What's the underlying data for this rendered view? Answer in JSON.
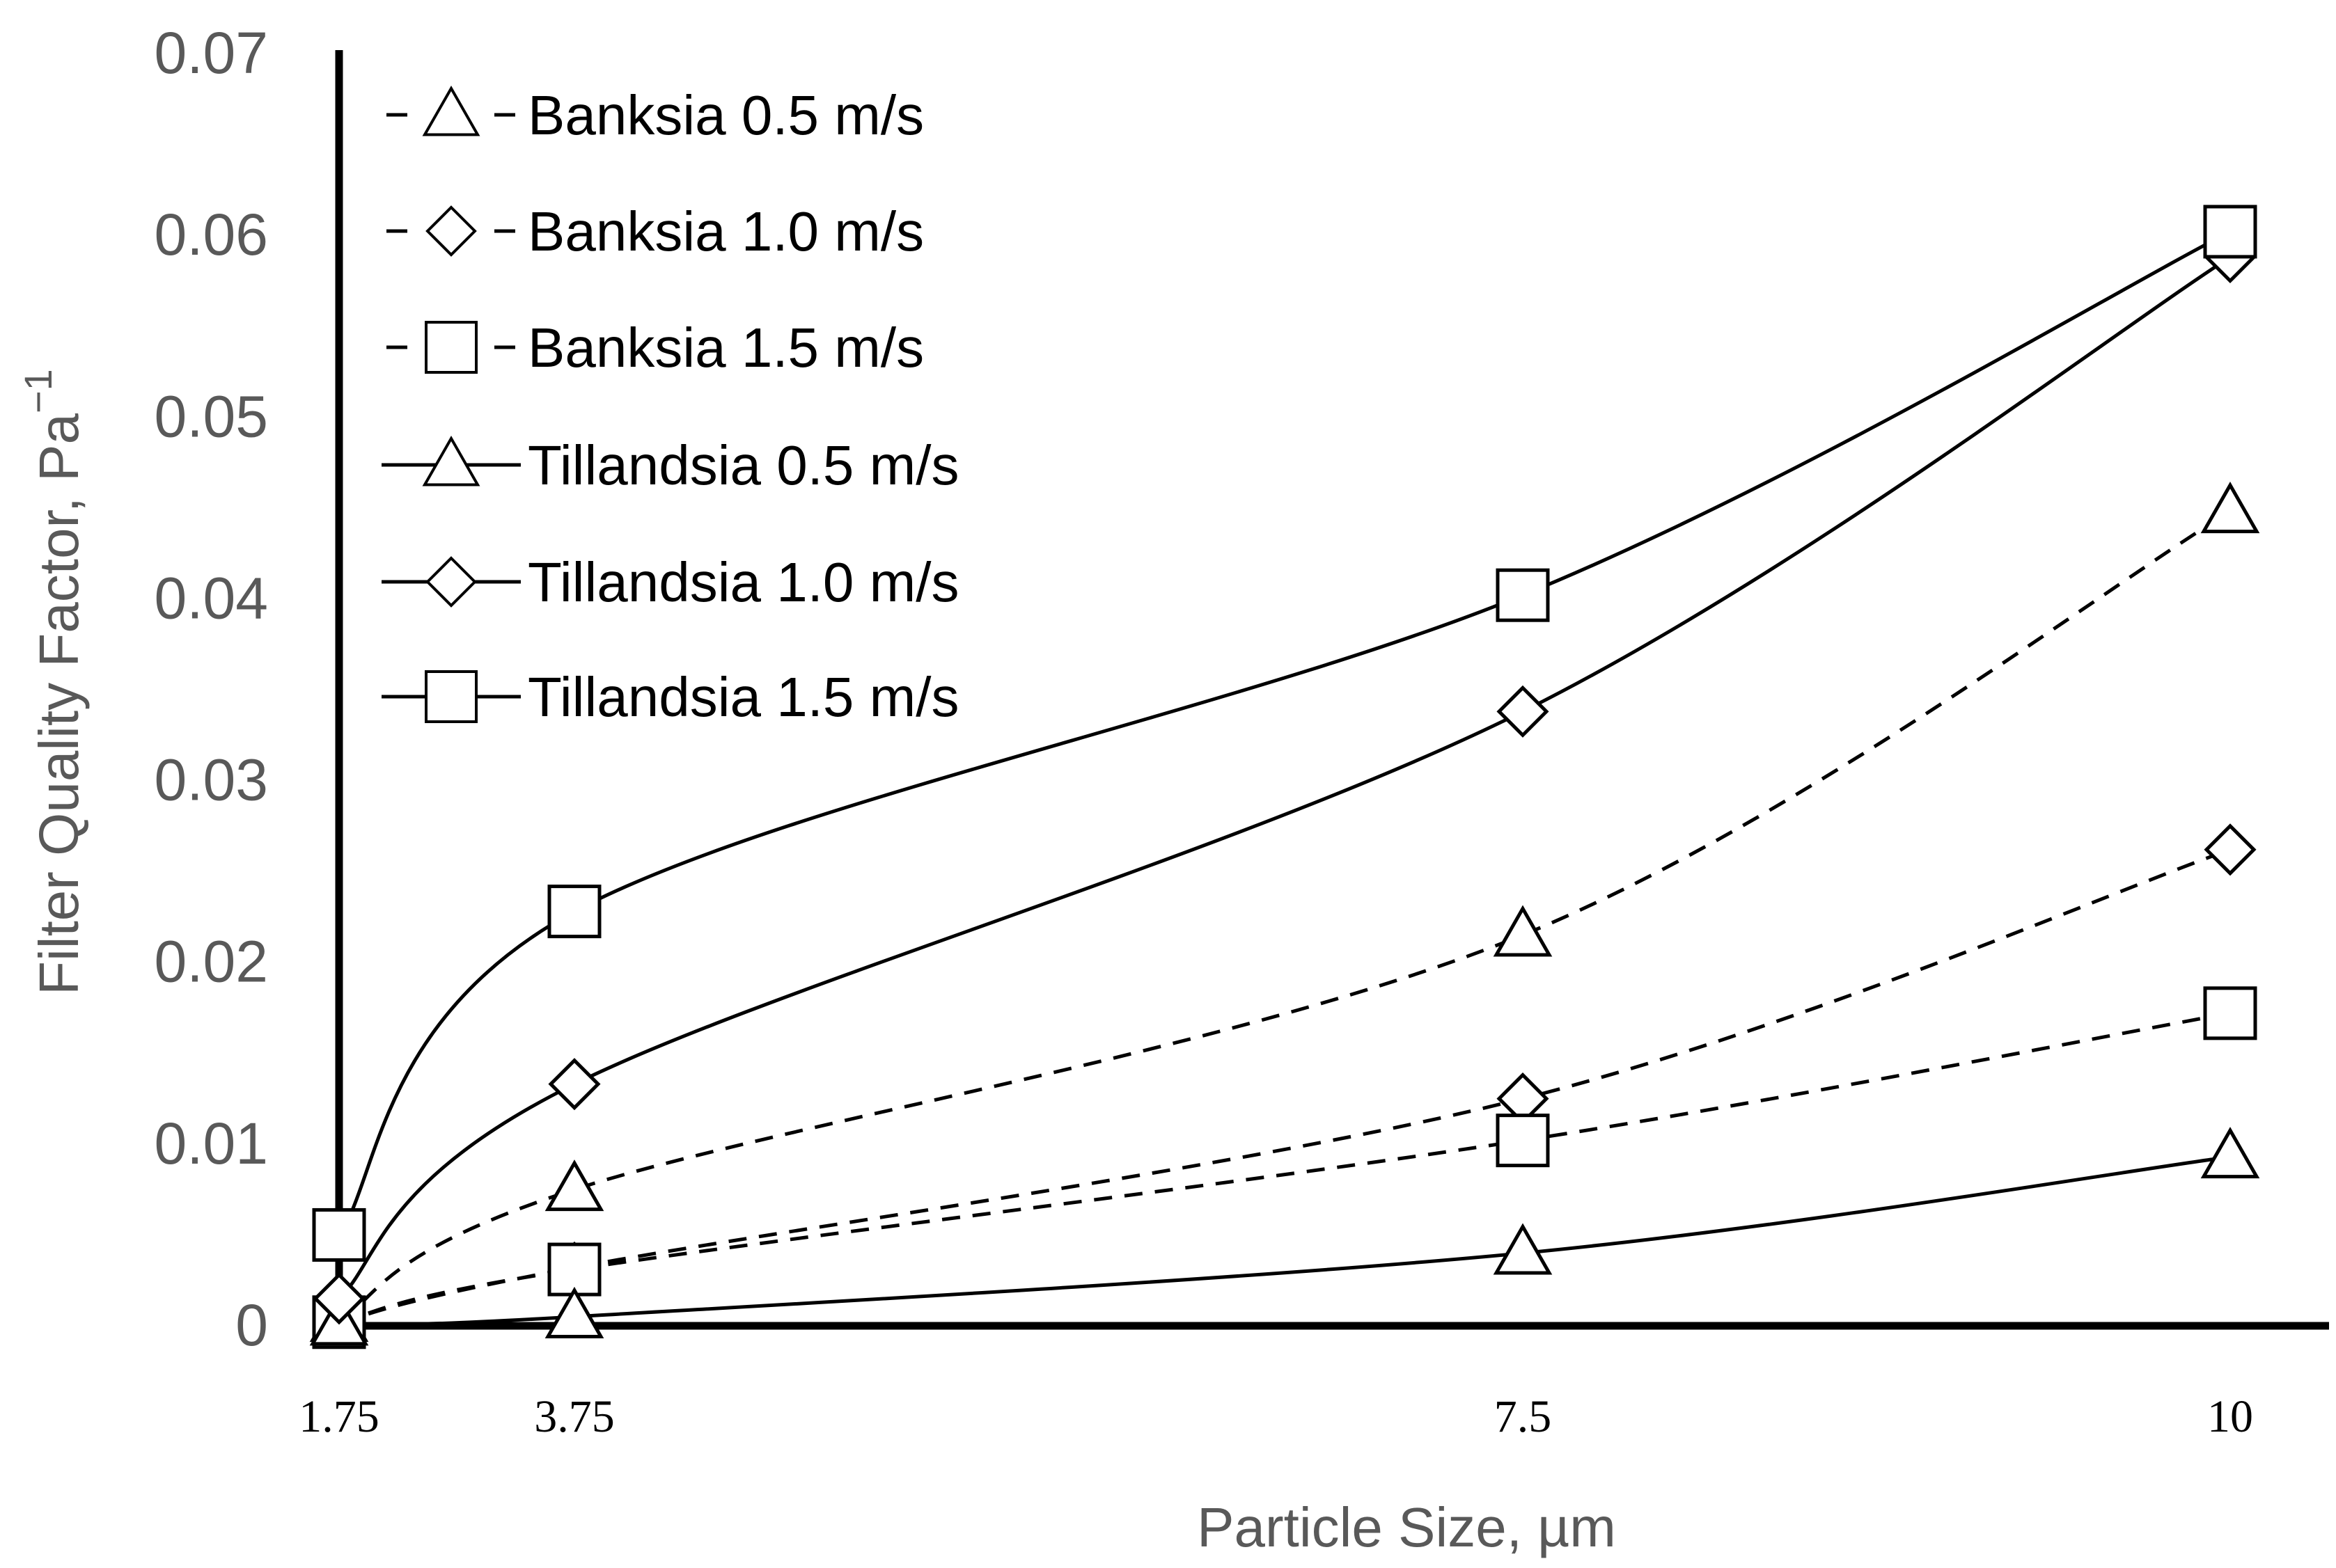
{
  "chart_data": {
    "type": "line",
    "xlabel": "Particle Size, µm",
    "ylabel": "Filter Quality Factor, Pa",
    "ylabel_superscript": "−1",
    "x": [
      1.75,
      3.75,
      7.5,
      10
    ],
    "x_tick_labels": [
      "1.75",
      "3.75",
      "7.5",
      "10"
    ],
    "ylim": [
      0,
      0.07
    ],
    "y_ticks": [
      0,
      0.01,
      0.02,
      0.03,
      0.04,
      0.05,
      0.06,
      0.07
    ],
    "y_tick_labels": [
      "0",
      "0.01",
      "0.02",
      "0.03",
      "0.04",
      "0.05",
      "0.06",
      "0.07"
    ],
    "grid": false,
    "legend_position": "top-left",
    "series": [
      {
        "name": "Banksia 0.5 m/s",
        "marker": "triangle",
        "line_style": "dashed",
        "values": [
          0.0003,
          0.0075,
          0.0215,
          0.0448
        ]
      },
      {
        "name": "Banksia 1.0 m/s",
        "marker": "diamond",
        "line_style": "dashed",
        "values": [
          0.0002,
          0.0032,
          0.0125,
          0.0262
        ]
      },
      {
        "name": "Banksia 1.5 m/s",
        "marker": "square",
        "line_style": "dashed",
        "values": [
          0.0002,
          0.0031,
          0.0102,
          0.0172
        ]
      },
      {
        "name": "Tillandsia 0.5 m/s",
        "marker": "triangle",
        "line_style": "solid",
        "values": [
          0.0001,
          0.0005,
          0.004,
          0.0093
        ]
      },
      {
        "name": "Tillandsia 1.0 m/s",
        "marker": "diamond",
        "line_style": "solid",
        "values": [
          0.0015,
          0.0133,
          0.0338,
          0.0588
        ]
      },
      {
        "name": "Tillandsia 1.5 m/s",
        "marker": "square",
        "line_style": "solid",
        "values": [
          0.005,
          0.0228,
          0.0402,
          0.0602
        ]
      }
    ]
  }
}
